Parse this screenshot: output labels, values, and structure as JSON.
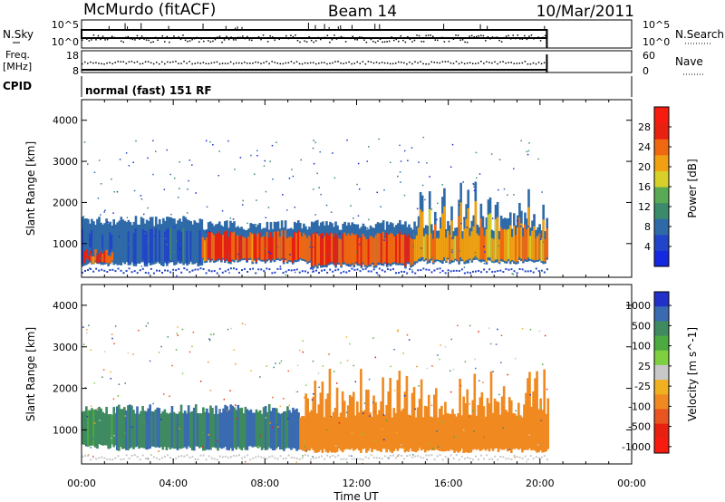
{
  "header": {
    "station": "McMurdo (fitACF)",
    "beam": "Beam 14",
    "date": "10/Mar/2011"
  },
  "top_panel": {
    "left_label": "N.Sky",
    "left_ticks": [
      "10^5",
      "10^0"
    ],
    "right_label": "N.Search",
    "right_ticks": [
      "10^5",
      "10^0"
    ]
  },
  "freq_panel": {
    "left_label_1": "Freq.",
    "left_label_2": "[MHz]",
    "left_ticks": [
      "18",
      "8"
    ],
    "right_label": "Nave",
    "right_ticks": [
      "60",
      "0"
    ]
  },
  "cpid": {
    "label": "CPID",
    "value": "normal (fast) 151 RF"
  },
  "colors": {
    "power_scale": [
      "#1428e0",
      "#2244c8",
      "#2f6aa8",
      "#3c8a6c",
      "#5aaa55",
      "#d8d02a",
      "#f0a010",
      "#f06810",
      "#e82010",
      "#f81c10"
    ],
    "velocity_scale": [
      "#2030c8",
      "#3a6ab0",
      "#3f8a60",
      "#4caa40",
      "#7ed040",
      "#c8c8c8",
      "#f0b020",
      "#f08a20",
      "#e85520",
      "#e82010",
      "#f81c10"
    ]
  },
  "chart_data": [
    {
      "type": "heatmap",
      "title": "",
      "xlabel": "Time UT",
      "ylabel": "Slant Range [km]",
      "x_range": [
        "00:00",
        "24:00"
      ],
      "ylim": [
        180,
        4500
      ],
      "x_ticks": [
        "00:00",
        "04:00",
        "08:00",
        "12:00",
        "16:00",
        "20:00",
        "00:00"
      ],
      "y_ticks": [
        1000,
        2000,
        3000,
        4000
      ],
      "colorbar": {
        "label": "Power [dB]",
        "range": [
          0,
          32
        ],
        "ticks": [
          4,
          8,
          12,
          16,
          20,
          24,
          28
        ]
      },
      "features": [
        {
          "time_start": "00:00",
          "time_end": "05:15",
          "range_low_km": 500,
          "range_high_km": 1500,
          "dominant_power_db": 6
        },
        {
          "time_start": "00:05",
          "time_end": "01:20",
          "range_low_km": 550,
          "range_high_km": 800,
          "dominant_power_db": 26
        },
        {
          "time_start": "05:15",
          "time_end": "10:00",
          "range_low_km": 550,
          "range_high_km": 1400,
          "dominant_power_db": 26
        },
        {
          "time_start": "10:00",
          "time_end": "14:30",
          "range_low_km": 450,
          "range_high_km": 1400,
          "dominant_power_db": 26
        },
        {
          "time_start": "14:30",
          "time_end": "20:20",
          "range_low_km": 550,
          "range_high_km": 2700,
          "dominant_power_db": 22
        }
      ]
    },
    {
      "type": "heatmap",
      "title": "",
      "xlabel": "Time UT",
      "ylabel": "Slant Range [km]",
      "x_range": [
        "00:00",
        "24:00"
      ],
      "ylim": [
        180,
        4500
      ],
      "x_ticks": [
        "00:00",
        "04:00",
        "08:00",
        "12:00",
        "16:00",
        "20:00",
        "00:00"
      ],
      "y_ticks": [
        1000,
        2000,
        3000,
        4000
      ],
      "colorbar": {
        "label": "Velocity [m s^-1]",
        "ticks": [
          1000,
          500,
          100,
          25,
          -25,
          -100,
          -500,
          -1000
        ]
      },
      "features": [
        {
          "time_start": "00:00",
          "time_end": "01:30",
          "range_low_km": 600,
          "range_high_km": 1400,
          "dominant_velocity_ms": 150
        },
        {
          "time_start": "01:30",
          "time_end": "09:30",
          "range_low_km": 550,
          "range_high_km": 1450,
          "dominant_velocity_ms": 300
        },
        {
          "time_start": "09:30",
          "time_end": "20:20",
          "range_low_km": 500,
          "range_high_km": 2700,
          "dominant_velocity_ms": -200
        }
      ]
    }
  ]
}
